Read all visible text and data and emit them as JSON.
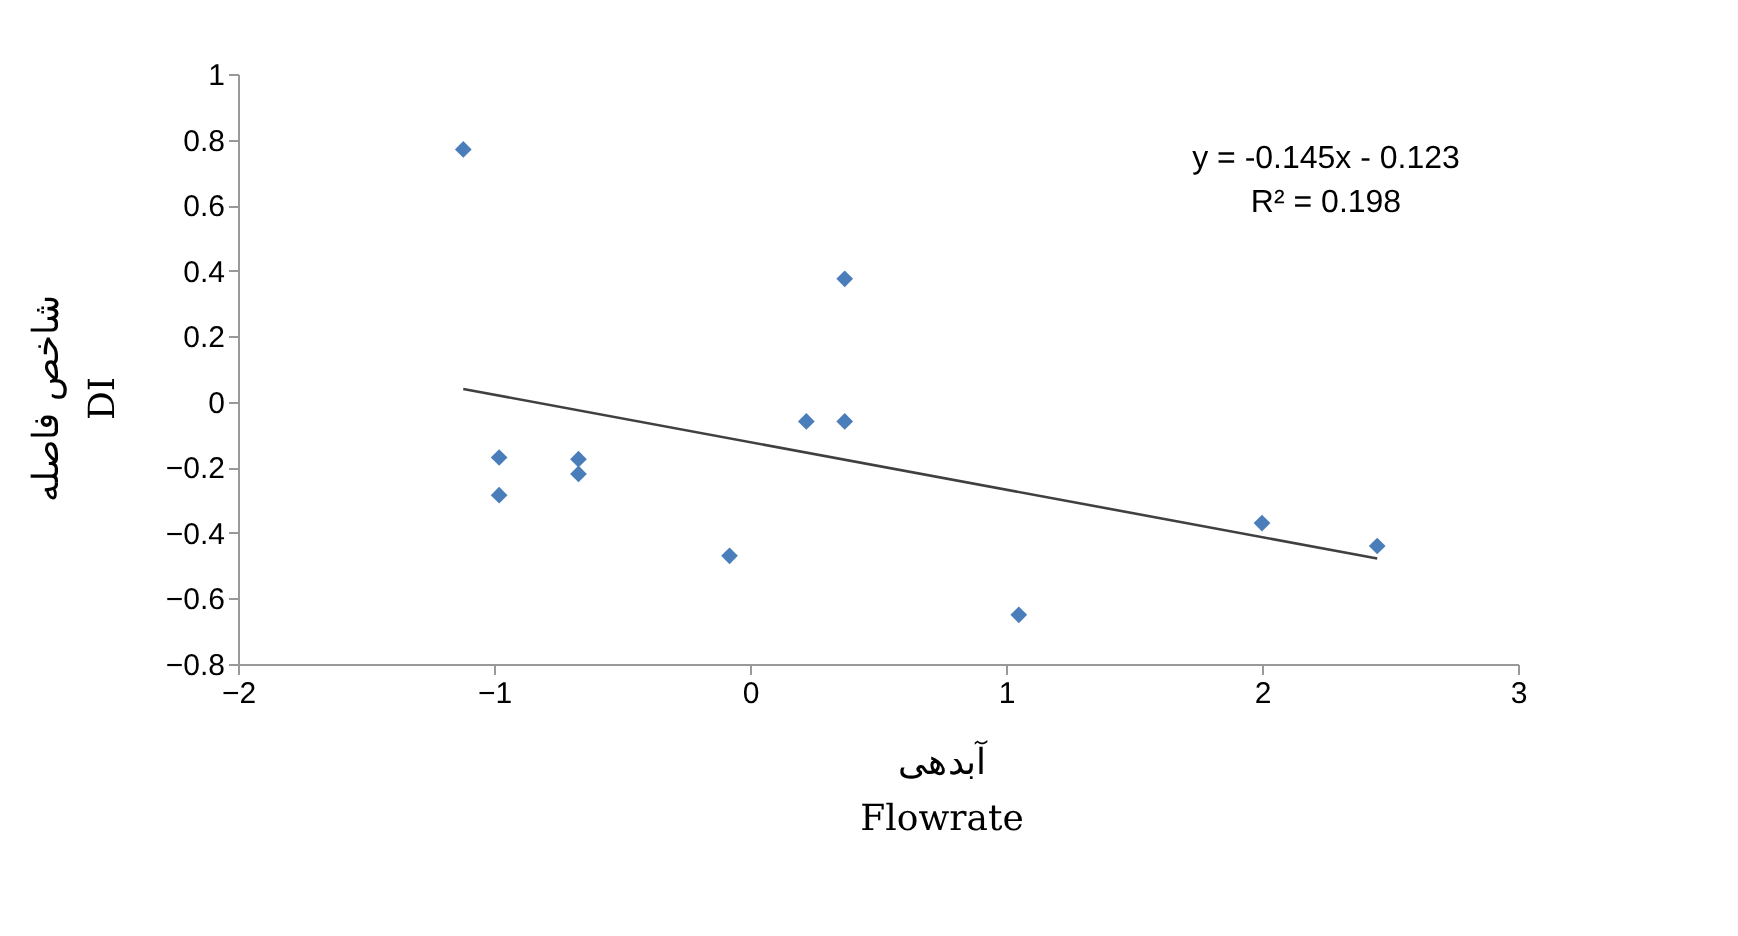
{
  "chart_data": {
    "type": "scatter",
    "xlabel": "آبدهی\nFlowrate",
    "ylabel": "شاخص فاصله\nDI",
    "xlim": [
      -2,
      3
    ],
    "xticks": [
      -2,
      -1,
      0,
      1,
      2,
      3
    ],
    "ylim": [
      -0.8,
      1
    ],
    "yticks": [
      -0.8,
      -0.6,
      -0.4,
      -0.2,
      0,
      0.2,
      0.4,
      0.6,
      0.8,
      1
    ],
    "grid": false,
    "annotations": [
      "y = -0.145x - 0.123",
      "R² = 0.198"
    ],
    "series": [
      {
        "marker": "diamond",
        "color": "#4a7ebb",
        "x": [
          -1.12,
          -0.98,
          -0.98,
          -0.67,
          -0.67,
          -0.08,
          0.22,
          0.37,
          0.37,
          1.05,
          2.0,
          2.45
        ],
        "values": [
          0.77,
          -0.17,
          -0.285,
          -0.175,
          -0.22,
          -0.47,
          -0.06,
          -0.06,
          0.375,
          -0.65,
          -0.37,
          -0.44
        ]
      },
      {
        "type": "line",
        "color": "#404040",
        "line_style": "solid",
        "x": [
          -1.12,
          2.45
        ],
        "values": [
          0.039,
          -0.478
        ]
      }
    ]
  }
}
